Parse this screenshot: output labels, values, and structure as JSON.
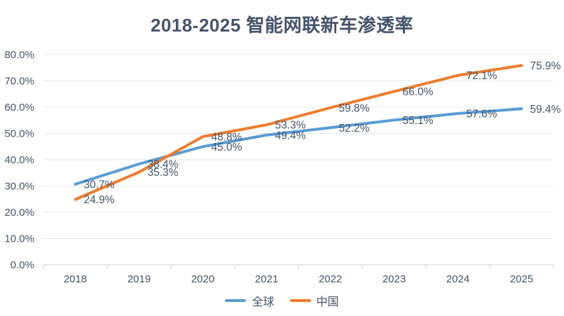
{
  "chart_data": {
    "type": "line",
    "title": "2018-2025 智能网联新车渗透率",
    "categories": [
      "2018",
      "2019",
      "2020",
      "2021",
      "2022",
      "2023",
      "2024",
      "2025"
    ],
    "series": [
      {
        "name": "全球",
        "color": "#5B9BD5",
        "values": [
          30.7,
          38.4,
          45.0,
          49.4,
          52.2,
          55.1,
          57.6,
          59.4
        ],
        "labels": [
          "30.7%",
          "38.4%",
          "45.0%",
          "49.4%",
          "52.2%",
          "55.1%",
          "57.6%",
          "59.4%"
        ]
      },
      {
        "name": "中国",
        "color": "#ED7D31",
        "values": [
          24.9,
          35.3,
          48.8,
          53.3,
          59.8,
          66.0,
          72.1,
          75.9
        ],
        "labels": [
          "24.9%",
          "35.3%",
          "48.8%",
          "53.3%",
          "59.8%",
          "66.0%",
          "72.1%",
          "75.9%"
        ]
      }
    ],
    "y_axis": {
      "ylim": [
        0,
        80
      ],
      "tick_labels": [
        "0.0%",
        "10.0%",
        "20.0%",
        "30.0%",
        "40.0%",
        "50.0%",
        "60.0%",
        "70.0%",
        "80.0%"
      ]
    },
    "grid": "horizontal",
    "legend_position": "bottom",
    "data_labels": "shown right of each point"
  },
  "colors": {
    "text": "#44546A",
    "gridline": "#E4E9F0",
    "axis": "#CBD4DF"
  }
}
